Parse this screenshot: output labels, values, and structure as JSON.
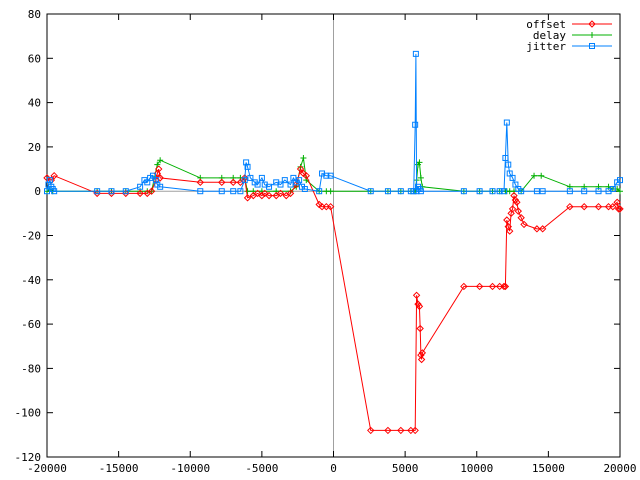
{
  "chart_data": {
    "type": "line",
    "title": "",
    "xlabel": "",
    "ylabel": "",
    "xlim": [
      -20000,
      20000
    ],
    "ylim": [
      -120,
      80
    ],
    "x_ticks": [
      -20000,
      -15000,
      -10000,
      -5000,
      0,
      5000,
      10000,
      15000,
      20000
    ],
    "y_ticks": [
      -120,
      -100,
      -80,
      -60,
      -40,
      -20,
      0,
      20,
      40,
      60,
      80
    ],
    "x_tick_labels": [
      "-20000",
      "-15000",
      "-10000",
      "-5000",
      "0",
      "5000",
      "10000",
      "15000",
      "20000"
    ],
    "y_tick_labels": [
      "-120",
      "-100",
      "-80",
      "-60",
      "-40",
      "-20",
      "0",
      "20",
      "40",
      "60",
      "80"
    ],
    "grid": false,
    "zero_line_x": 0,
    "legend_position": "top-right",
    "series": [
      {
        "name": "offset",
        "color": "#ff0000",
        "marker": "diamond",
        "points": [
          [
            -20000,
            6
          ],
          [
            -19700,
            5
          ],
          [
            -19500,
            7
          ],
          [
            -16500,
            -1
          ],
          [
            -15500,
            -1
          ],
          [
            -14500,
            -1
          ],
          [
            -13500,
            -1
          ],
          [
            -13000,
            -1
          ],
          [
            -12700,
            0
          ],
          [
            -12400,
            5
          ],
          [
            -12300,
            8
          ],
          [
            -12200,
            10
          ],
          [
            -12100,
            6
          ],
          [
            -9300,
            4
          ],
          [
            -7800,
            4
          ],
          [
            -7000,
            4
          ],
          [
            -6500,
            4
          ],
          [
            -6200,
            6
          ],
          [
            -6000,
            -3
          ],
          [
            -5600,
            -2
          ],
          [
            -5300,
            -1
          ],
          [
            -5000,
            -2
          ],
          [
            -4800,
            -1
          ],
          [
            -4500,
            -2
          ],
          [
            -4000,
            -2
          ],
          [
            -3700,
            -1
          ],
          [
            -3300,
            -2
          ],
          [
            -3000,
            -1
          ],
          [
            -2600,
            3
          ],
          [
            -2300,
            10
          ],
          [
            -2100,
            8
          ],
          [
            -1900,
            7
          ],
          [
            -1000,
            -6
          ],
          [
            -800,
            -7
          ],
          [
            -500,
            -7
          ],
          [
            -200,
            -7
          ],
          [
            2600,
            -108
          ],
          [
            3800,
            -108
          ],
          [
            4700,
            -108
          ],
          [
            5400,
            -108
          ],
          [
            5700,
            -108
          ],
          [
            5800,
            -47
          ],
          [
            5900,
            -51
          ],
          [
            6000,
            -52
          ],
          [
            6050,
            -62
          ],
          [
            6100,
            -74
          ],
          [
            6150,
            -76
          ],
          [
            6200,
            -73
          ],
          [
            9100,
            -43
          ],
          [
            10200,
            -43
          ],
          [
            11100,
            -43
          ],
          [
            11600,
            -43
          ],
          [
            11900,
            -43
          ],
          [
            12000,
            -43
          ],
          [
            12100,
            -13
          ],
          [
            12200,
            -16
          ],
          [
            12300,
            -18
          ],
          [
            12400,
            -10
          ],
          [
            12500,
            -8
          ],
          [
            12600,
            -2
          ],
          [
            12700,
            -4
          ],
          [
            12800,
            -5
          ],
          [
            12900,
            -9
          ],
          [
            13100,
            -12
          ],
          [
            13300,
            -15
          ],
          [
            14200,
            -17
          ],
          [
            14600,
            -17
          ],
          [
            16500,
            -7
          ],
          [
            17500,
            -7
          ],
          [
            18500,
            -7
          ],
          [
            19200,
            -7
          ],
          [
            19500,
            -7
          ],
          [
            19800,
            -5
          ],
          [
            19900,
            -8
          ],
          [
            20000,
            -8
          ]
        ]
      },
      {
        "name": "delay",
        "color": "#00b000",
        "marker": "plus",
        "points": [
          [
            -20000,
            0
          ],
          [
            -19800,
            1
          ],
          [
            -19600,
            0
          ],
          [
            -16500,
            0
          ],
          [
            -15500,
            0
          ],
          [
            -14500,
            0
          ],
          [
            -13500,
            0
          ],
          [
            -13000,
            0
          ],
          [
            -12700,
            0
          ],
          [
            -12300,
            12
          ],
          [
            -12100,
            14
          ],
          [
            -9300,
            6
          ],
          [
            -7800,
            6
          ],
          [
            -7000,
            6
          ],
          [
            -6500,
            6
          ],
          [
            -6200,
            6
          ],
          [
            -6000,
            0
          ],
          [
            -5600,
            0
          ],
          [
            -5000,
            0
          ],
          [
            -4000,
            0
          ],
          [
            -3000,
            0
          ],
          [
            -2600,
            2
          ],
          [
            -2300,
            11
          ],
          [
            -2100,
            15
          ],
          [
            -1900,
            5
          ],
          [
            -1000,
            0
          ],
          [
            -500,
            0
          ],
          [
            -200,
            0
          ],
          [
            2600,
            0
          ],
          [
            3800,
            0
          ],
          [
            4700,
            0
          ],
          [
            5400,
            0
          ],
          [
            5700,
            0
          ],
          [
            5800,
            5
          ],
          [
            5900,
            12
          ],
          [
            6000,
            13
          ],
          [
            6100,
            6
          ],
          [
            6200,
            2
          ],
          [
            9100,
            0
          ],
          [
            10200,
            0
          ],
          [
            11100,
            0
          ],
          [
            11600,
            0
          ],
          [
            12000,
            0
          ],
          [
            12100,
            0
          ],
          [
            12300,
            0
          ],
          [
            12600,
            0
          ],
          [
            13100,
            0
          ],
          [
            14000,
            7
          ],
          [
            14500,
            7
          ],
          [
            16500,
            2
          ],
          [
            17500,
            2
          ],
          [
            18500,
            2
          ],
          [
            19200,
            2
          ],
          [
            19500,
            1
          ],
          [
            19800,
            1
          ],
          [
            20000,
            0
          ]
        ]
      },
      {
        "name": "jitter",
        "color": "#0080ff",
        "marker": "square",
        "points": [
          [
            -20000,
            0
          ],
          [
            -19900,
            3
          ],
          [
            -19800,
            5
          ],
          [
            -19700,
            2
          ],
          [
            -19600,
            1
          ],
          [
            -19500,
            0
          ],
          [
            -16500,
            0
          ],
          [
            -15500,
            0
          ],
          [
            -14500,
            0
          ],
          [
            -13500,
            2
          ],
          [
            -13200,
            5
          ],
          [
            -13000,
            4
          ],
          [
            -12800,
            6
          ],
          [
            -12600,
            7
          ],
          [
            -12400,
            5
          ],
          [
            -12300,
            3
          ],
          [
            -12100,
            2
          ],
          [
            -9300,
            0
          ],
          [
            -7800,
            0
          ],
          [
            -7000,
            0
          ],
          [
            -6500,
            0
          ],
          [
            -6200,
            5
          ],
          [
            -6100,
            13
          ],
          [
            -6000,
            11
          ],
          [
            -5800,
            6
          ],
          [
            -5500,
            4
          ],
          [
            -5300,
            3
          ],
          [
            -5000,
            6
          ],
          [
            -4800,
            3
          ],
          [
            -4500,
            2
          ],
          [
            -4000,
            4
          ],
          [
            -3700,
            3
          ],
          [
            -3400,
            5
          ],
          [
            -3000,
            3
          ],
          [
            -2800,
            6
          ],
          [
            -2600,
            4
          ],
          [
            -2400,
            5
          ],
          [
            -2200,
            2
          ],
          [
            -2000,
            1
          ],
          [
            -1000,
            0
          ],
          [
            -800,
            8
          ],
          [
            -500,
            7
          ],
          [
            -200,
            7
          ],
          [
            2600,
            0
          ],
          [
            3800,
            0
          ],
          [
            4700,
            0
          ],
          [
            5400,
            0
          ],
          [
            5600,
            0
          ],
          [
            5700,
            30
          ],
          [
            5750,
            62
          ],
          [
            5800,
            0
          ],
          [
            5900,
            2
          ],
          [
            6000,
            1
          ],
          [
            6100,
            0
          ],
          [
            9100,
            0
          ],
          [
            10200,
            0
          ],
          [
            11100,
            0
          ],
          [
            11600,
            0
          ],
          [
            11900,
            0
          ],
          [
            12000,
            15
          ],
          [
            12100,
            31
          ],
          [
            12200,
            12
          ],
          [
            12300,
            8
          ],
          [
            12500,
            6
          ],
          [
            12700,
            3
          ],
          [
            12900,
            1
          ],
          [
            13100,
            0
          ],
          [
            14200,
            0
          ],
          [
            14600,
            0
          ],
          [
            16500,
            0
          ],
          [
            17500,
            0
          ],
          [
            18500,
            0
          ],
          [
            19200,
            0
          ],
          [
            19500,
            1
          ],
          [
            19800,
            4
          ],
          [
            20000,
            5
          ]
        ]
      }
    ]
  }
}
